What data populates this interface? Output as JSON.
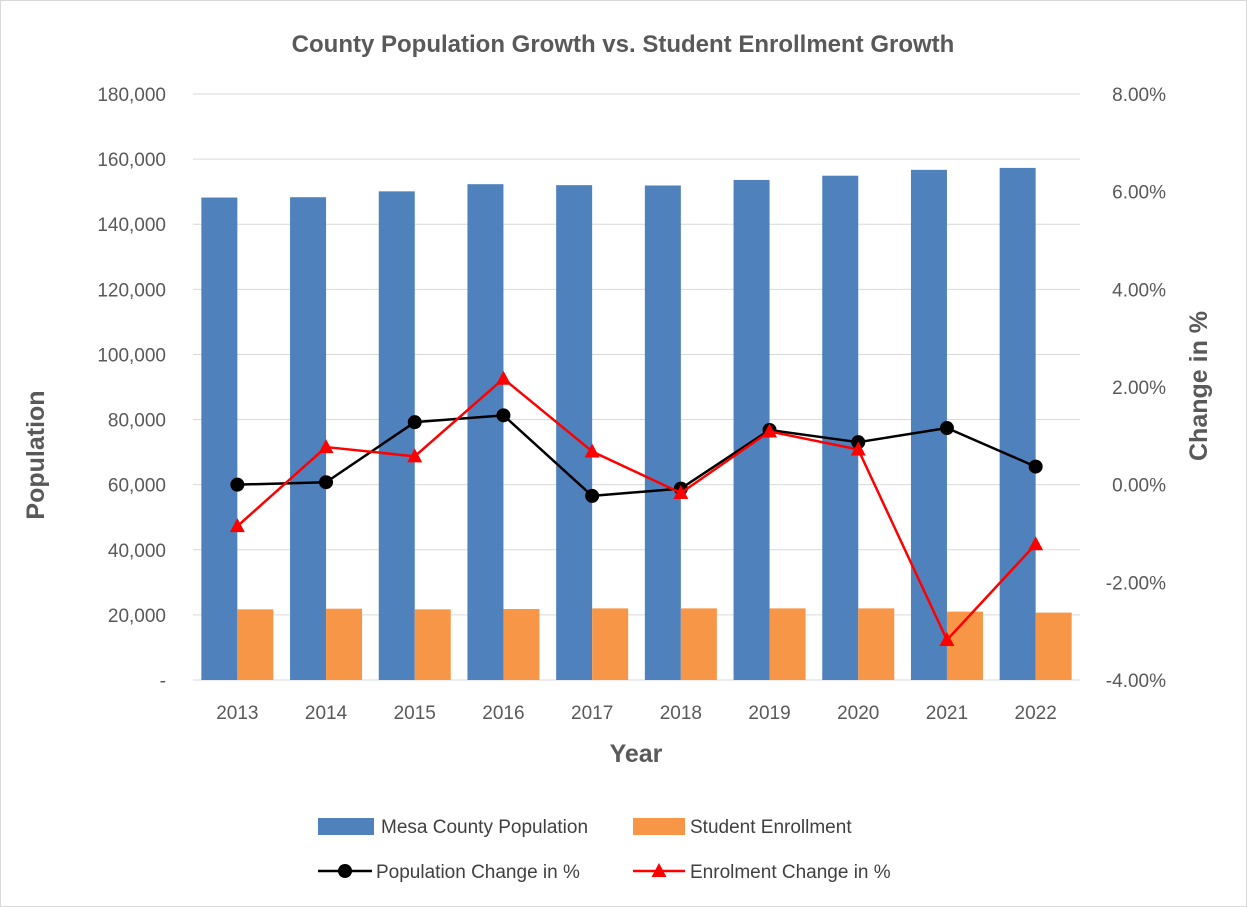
{
  "chart_data": {
    "type": "bar",
    "title": "County Population Growth vs. Student Enrollment Growth",
    "xlabel": "Year",
    "ylabel": "Population",
    "y2label": "Change in %",
    "categories": [
      "2013",
      "2014",
      "2015",
      "2016",
      "2017",
      "2018",
      "2019",
      "2020",
      "2021",
      "2022"
    ],
    "ylim": [
      0,
      180000
    ],
    "y_ticks": [
      0,
      20000,
      40000,
      60000,
      80000,
      100000,
      120000,
      140000,
      160000,
      180000
    ],
    "y_tick_labels": [
      "-",
      "20,000",
      "40,000",
      "60,000",
      "80,000",
      "100,000",
      "120,000",
      "140,000",
      "160,000",
      "180,000"
    ],
    "y2lim": [
      -4.0,
      8.0
    ],
    "y2_ticks": [
      -4,
      -2,
      0,
      2,
      4,
      6,
      8
    ],
    "y2_tick_labels": [
      "-4.00%",
      "-2.00%",
      "0.00%",
      "2.00%",
      "4.00%",
      "6.00%",
      "8.00%"
    ],
    "grid": true,
    "legend_position": "bottom",
    "bar_series": [
      {
        "name": "Mesa County Population",
        "color": "#4f81bd",
        "values": [
          148200,
          148300,
          150100,
          152300,
          152000,
          151900,
          153600,
          154900,
          156700,
          157300
        ]
      },
      {
        "name": "Student Enrollment",
        "color": "#f79646",
        "values": [
          21700,
          21900,
          21700,
          21800,
          22000,
          22000,
          22000,
          22000,
          21000,
          20700
        ]
      }
    ],
    "line_series": [
      {
        "name": "Population Change in %",
        "color": "#000000",
        "marker": "circle",
        "axis": "right",
        "values": [
          0.0,
          0.05,
          1.28,
          1.42,
          -0.23,
          -0.08,
          1.12,
          0.87,
          1.16,
          0.37
        ]
      },
      {
        "name": "Enrolment Change in %",
        "color": "#ff0000",
        "marker": "triangle",
        "axis": "right",
        "values": [
          -0.85,
          0.77,
          0.58,
          2.17,
          0.68,
          -0.17,
          1.09,
          0.72,
          -3.18,
          -1.22
        ]
      }
    ]
  }
}
